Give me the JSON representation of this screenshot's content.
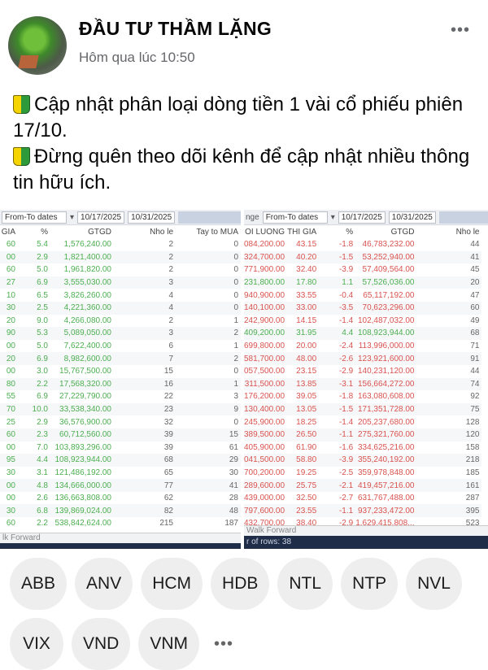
{
  "post": {
    "author": "ĐẦU TƯ THẦM LẶNG",
    "timestamp": "Hôm qua lúc 10:50",
    "more_label": "•••",
    "lines": [
      "Cập nhật phân loại dòng tiền 1 vài cổ phiếu phiên 17/10.",
      "Đừng quên theo dõi kênh để cập nhật nhiều thông tin hữu ích."
    ],
    "line_icon": "beginner-leaf-icon"
  },
  "left_sheet": {
    "toolbar": {
      "range_label": "From-To dates",
      "from_date": "10/17/2025",
      "to_date": "10/31/2025"
    },
    "columns": [
      "GIA",
      "%",
      "GTGD",
      "Nho le",
      "Tay to MUA"
    ],
    "rows": [
      [
        "60",
        "5.4",
        "1,576,240.00",
        "2",
        "0"
      ],
      [
        "00",
        "2.9",
        "1,821,400.00",
        "2",
        "0"
      ],
      [
        "60",
        "5.0",
        "1,961,820.00",
        "2",
        "0"
      ],
      [
        "27",
        "6.9",
        "3,555,030.00",
        "3",
        "0"
      ],
      [
        "10",
        "6.5",
        "3,826,260.00",
        "4",
        "0"
      ],
      [
        "30",
        "2.5",
        "4,221,360.00",
        "4",
        "0"
      ],
      [
        "20",
        "9.0",
        "4,266,080.00",
        "2",
        "1"
      ],
      [
        "90",
        "5.3",
        "5,089,050.00",
        "3",
        "2"
      ],
      [
        "00",
        "5.0",
        "7,622,400.00",
        "6",
        "1"
      ],
      [
        "20",
        "6.9",
        "8,982,600.00",
        "7",
        "2"
      ],
      [
        "00",
        "3.0",
        "15,767,500.00",
        "15",
        "0"
      ],
      [
        "80",
        "2.2",
        "17,568,320.00",
        "16",
        "1"
      ],
      [
        "55",
        "6.9",
        "27,229,790.00",
        "22",
        "3"
      ],
      [
        "70",
        "10.0",
        "33,538,340.00",
        "23",
        "9"
      ],
      [
        "25",
        "2.9",
        "36,576,900.00",
        "32",
        "0"
      ],
      [
        "60",
        "2.3",
        "60,712,560.00",
        "39",
        "15"
      ],
      [
        "00",
        "7.0",
        "103,893,296.00",
        "39",
        "61"
      ],
      [
        "95",
        "4.4",
        "108,923,944.00",
        "68",
        "29"
      ],
      [
        "30",
        "3.1",
        "121,486,192.00",
        "65",
        "30"
      ],
      [
        "00",
        "4.8",
        "134,666,000.00",
        "77",
        "41"
      ],
      [
        "00",
        "2.6",
        "136,663,808.00",
        "62",
        "28"
      ],
      [
        "30",
        "6.8",
        "139,869,024.00",
        "82",
        "48"
      ],
      [
        "60",
        "2.2",
        "538,842,624.00",
        "215",
        "187"
      ]
    ],
    "sheet_tab": "lk Forward"
  },
  "right_sheet": {
    "toolbar": {
      "range_prefix": "nge",
      "range_label": "From-To dates",
      "from_date": "10/17/2025",
      "to_date": "10/31/2025"
    },
    "columns": [
      "OI LUONG",
      "THI GIA",
      "%",
      "GTGD",
      "Nho le"
    ],
    "rows": [
      [
        "084,200.00",
        "43.15",
        "-1.8",
        "46,783,232.00",
        "44"
      ],
      [
        "324,700.00",
        "40.20",
        "-1.5",
        "53,252,940.00",
        "41"
      ],
      [
        "771,900.00",
        "32.40",
        "-3.9",
        "57,409,564.00",
        "45"
      ],
      [
        "231,800.00",
        "17.80",
        "1.1",
        "57,526,036.00",
        "20"
      ],
      [
        "940,900.00",
        "33.55",
        "-0.4",
        "65,117,192.00",
        "47"
      ],
      [
        "140,100.00",
        "33.00",
        "-3.5",
        "70,623,296.00",
        "60"
      ],
      [
        "242,900.00",
        "14.15",
        "-1.4",
        "102,487,032.00",
        "49"
      ],
      [
        "409,200.00",
        "31.95",
        "4.4",
        "108,923,944.00",
        "68"
      ],
      [
        "699,800.00",
        "20.00",
        "-2.4",
        "113,996,000.00",
        "71"
      ],
      [
        "581,700.00",
        "48.00",
        "-2.6",
        "123,921,600.00",
        "91"
      ],
      [
        "057,500.00",
        "23.15",
        "-2.9",
        "140,231,120.00",
        "44"
      ],
      [
        "311,500.00",
        "13.85",
        "-3.1",
        "156,664,272.00",
        "74"
      ],
      [
        "176,200.00",
        "39.05",
        "-1.8",
        "163,080,608.00",
        "92"
      ],
      [
        "130,400.00",
        "13.05",
        "-1.5",
        "171,351,728.00",
        "75"
      ],
      [
        "245,900.00",
        "18.25",
        "-1.4",
        "205,237,680.00",
        "128"
      ],
      [
        "389,500.00",
        "26.50",
        "-1.1",
        "275,321,760.00",
        "120"
      ],
      [
        "405,900.00",
        "61.90",
        "-1.6",
        "334,625,216.00",
        "158"
      ],
      [
        "041,500.00",
        "58.80",
        "-3.9",
        "355,240,192.00",
        "218"
      ],
      [
        "700,200.00",
        "19.25",
        "-2.5",
        "359,978,848.00",
        "185"
      ],
      [
        "289,600.00",
        "25.75",
        "-2.1",
        "419,457,216.00",
        "161"
      ],
      [
        "439,000.00",
        "32.50",
        "-2.7",
        "631,767,488.00",
        "287"
      ],
      [
        "797,600.00",
        "23.55",
        "-1.1",
        "937,233,472.00",
        "395"
      ],
      [
        "432,700.00",
        "38.40",
        "-2.9",
        "1,629,415,808...",
        "523"
      ]
    ],
    "sheet_tab": "Walk Forward",
    "status": "r of rows: 38"
  },
  "tags": [
    "ABB",
    "ANV",
    "HCM",
    "HDB",
    "NTL",
    "NTP",
    "NVL",
    "VIX",
    "VND",
    "VNM"
  ],
  "tags_more": "•••",
  "colors": {
    "up": "#4caf50",
    "down": "#d9534f",
    "chip_bg": "#eeeeee",
    "meta": "#65676b"
  }
}
